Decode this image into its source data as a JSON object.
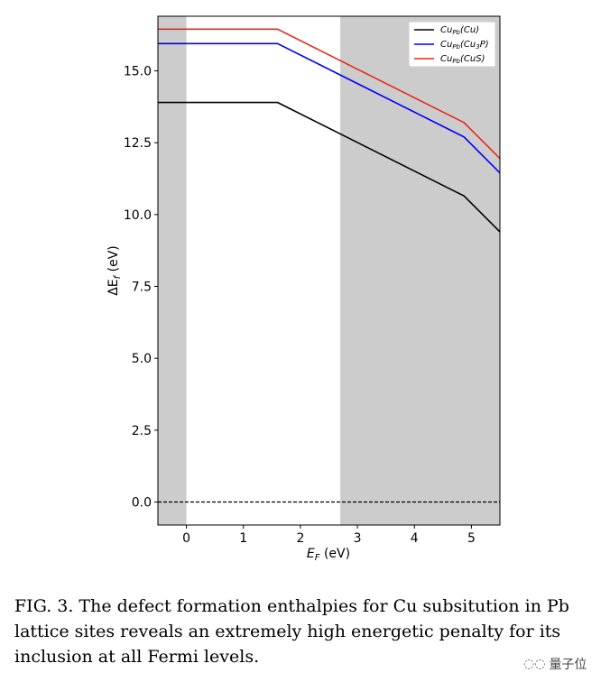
{
  "chart_data": {
    "type": "line",
    "xlabel_symbol": "E",
    "xlabel_sub": "F",
    "xlabel_unit": " (eV)",
    "ylabel_prefix": "ΔE",
    "ylabel_sub": "f",
    "ylabel_unit": " (eV)",
    "xlim": [
      -0.5,
      5.5
    ],
    "ylim": [
      -0.8,
      16.9
    ],
    "xticks": [
      0,
      1,
      2,
      3,
      4,
      5
    ],
    "xtick_labels": [
      "0",
      "1",
      "2",
      "3",
      "4",
      "5"
    ],
    "yticks": [
      0,
      2.5,
      5,
      7.5,
      10,
      12.5,
      15
    ],
    "ytick_labels": [
      "0.0",
      "2.5",
      "5.0",
      "7.5",
      "10.0",
      "12.5",
      "15.0"
    ],
    "shaded_regions": [
      {
        "x0": -0.5,
        "x1": 0.0,
        "color": "#cccccc"
      },
      {
        "x0": 2.7,
        "x1": 5.5,
        "color": "#cccccc"
      }
    ],
    "reference_line": {
      "y": 0.0,
      "style": "dashed",
      "color": "#000000"
    },
    "legend_position": "top-right",
    "series": [
      {
        "name_main": "Cu",
        "name_sub": "Pb",
        "name_paren": "(Cu)",
        "color": "#000000",
        "x": [
          -0.5,
          1.6,
          4.87,
          5.5
        ],
        "y": [
          13.9,
          13.9,
          10.65,
          9.4
        ]
      },
      {
        "name_main": "Cu",
        "name_sub": "Pb",
        "name_paren_pre": "(Cu",
        "name_paren_sub": "3",
        "name_paren_post": "P)",
        "color": "#0000ff",
        "x": [
          -0.5,
          1.6,
          4.87,
          5.5
        ],
        "y": [
          15.95,
          15.95,
          12.7,
          11.45
        ]
      },
      {
        "name_main": "Cu",
        "name_sub": "Pb",
        "name_paren": "(CuS)",
        "color": "#e8291c",
        "x": [
          -0.5,
          1.6,
          4.87,
          5.5
        ],
        "y": [
          16.45,
          16.45,
          13.2,
          11.95
        ]
      }
    ]
  },
  "caption": {
    "text": "FIG. 3.  The defect formation enthalpies for Cu subsitution in Pb lattice sites reveals an extremely high energetic penalty for its inclusion at all Fermi levels."
  },
  "watermark": {
    "icon": "wechat-icon",
    "text": "量子位"
  }
}
